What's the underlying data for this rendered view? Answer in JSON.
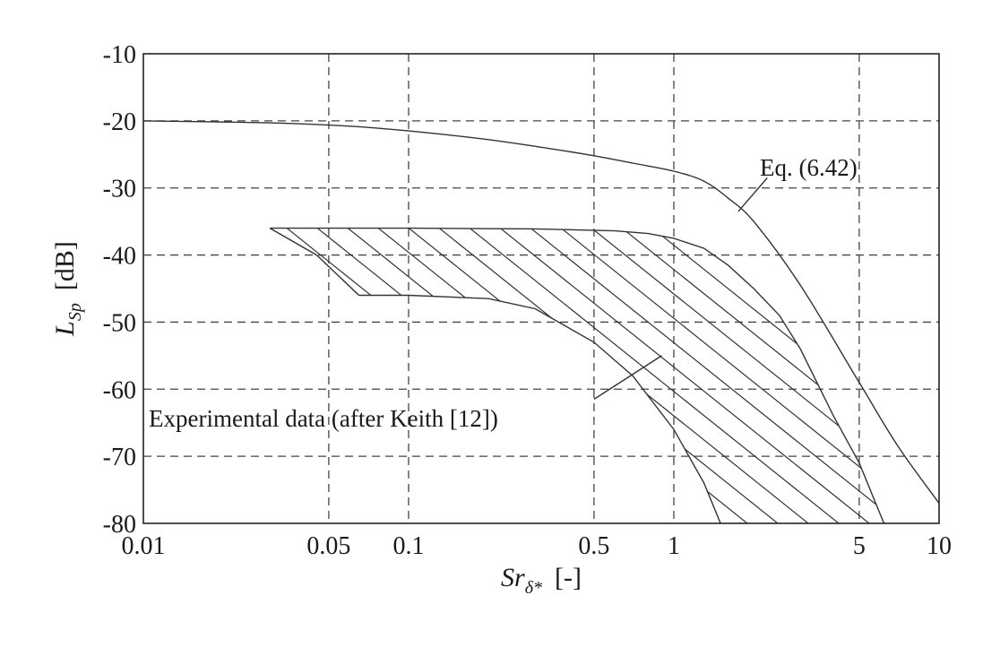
{
  "chart_data": {
    "type": "line",
    "title": "",
    "xlabel": {
      "base": "Sr",
      "sub": "δ*",
      "unit": "[-]"
    },
    "ylabel": {
      "base": "L",
      "sub": "Sp",
      "unit": "[dB]"
    },
    "x_scale": "log",
    "xlim": [
      0.01,
      10
    ],
    "ylim": [
      -80,
      -10
    ],
    "x_ticks": [
      0.01,
      0.05,
      0.1,
      0.5,
      1,
      5,
      10
    ],
    "x_tick_labels": [
      "0.01",
      "0.05",
      "0.1",
      "0.5",
      "1",
      "5",
      "10"
    ],
    "y_ticks": [
      -10,
      -20,
      -30,
      -40,
      -50,
      -60,
      -70,
      -80
    ],
    "y_tick_labels": [
      "-10",
      "-20",
      "-30",
      "-40",
      "-50",
      "-60",
      "-70",
      "-80"
    ],
    "grid": true,
    "series": [
      {
        "name": "Eq. (6.42)",
        "points": [
          [
            0.01,
            -20
          ],
          [
            0.03,
            -20.3
          ],
          [
            0.06,
            -20.8
          ],
          [
            0.1,
            -21.5
          ],
          [
            0.2,
            -22.8
          ],
          [
            0.35,
            -24.2
          ],
          [
            0.5,
            -25.2
          ],
          [
            0.7,
            -26.3
          ],
          [
            1,
            -27.5
          ],
          [
            1.3,
            -29
          ],
          [
            1.6,
            -31.5
          ],
          [
            2,
            -35
          ],
          [
            3,
            -44.5
          ],
          [
            5,
            -59
          ],
          [
            7,
            -68.5
          ],
          [
            10,
            -77
          ]
        ]
      }
    ],
    "region": {
      "name": "Experimental data (after Keith [12])",
      "upper": [
        [
          0.03,
          -36
        ],
        [
          0.1,
          -36
        ],
        [
          0.3,
          -36.1
        ],
        [
          0.6,
          -36.4
        ],
        [
          0.8,
          -36.8
        ],
        [
          1,
          -37.5
        ],
        [
          1.3,
          -39
        ],
        [
          1.6,
          -41.5
        ],
        [
          2,
          -45
        ],
        [
          2.5,
          -49
        ],
        [
          3,
          -54
        ],
        [
          4,
          -64
        ],
        [
          5,
          -71
        ],
        [
          6.2,
          -80
        ]
      ],
      "lower": [
        [
          0.03,
          -36
        ],
        [
          0.045,
          -40
        ],
        [
          0.065,
          -46
        ],
        [
          0.1,
          -46
        ],
        [
          0.2,
          -46.5
        ],
        [
          0.3,
          -48
        ],
        [
          0.5,
          -53
        ],
        [
          0.7,
          -58
        ],
        [
          1,
          -66
        ],
        [
          1.3,
          -74
        ],
        [
          1.5,
          -80
        ]
      ]
    },
    "annotations": [
      {
        "text": "Eq. (6.42)",
        "leader_from": [
          2.25,
          -28.5
        ],
        "leader_to": [
          1.75,
          -33.5
        ]
      },
      {
        "text": "Experimental data (after Keith [12])",
        "leader_from": [
          0.5,
          -61.5
        ],
        "leader_to": [
          0.9,
          -55
        ]
      }
    ]
  }
}
